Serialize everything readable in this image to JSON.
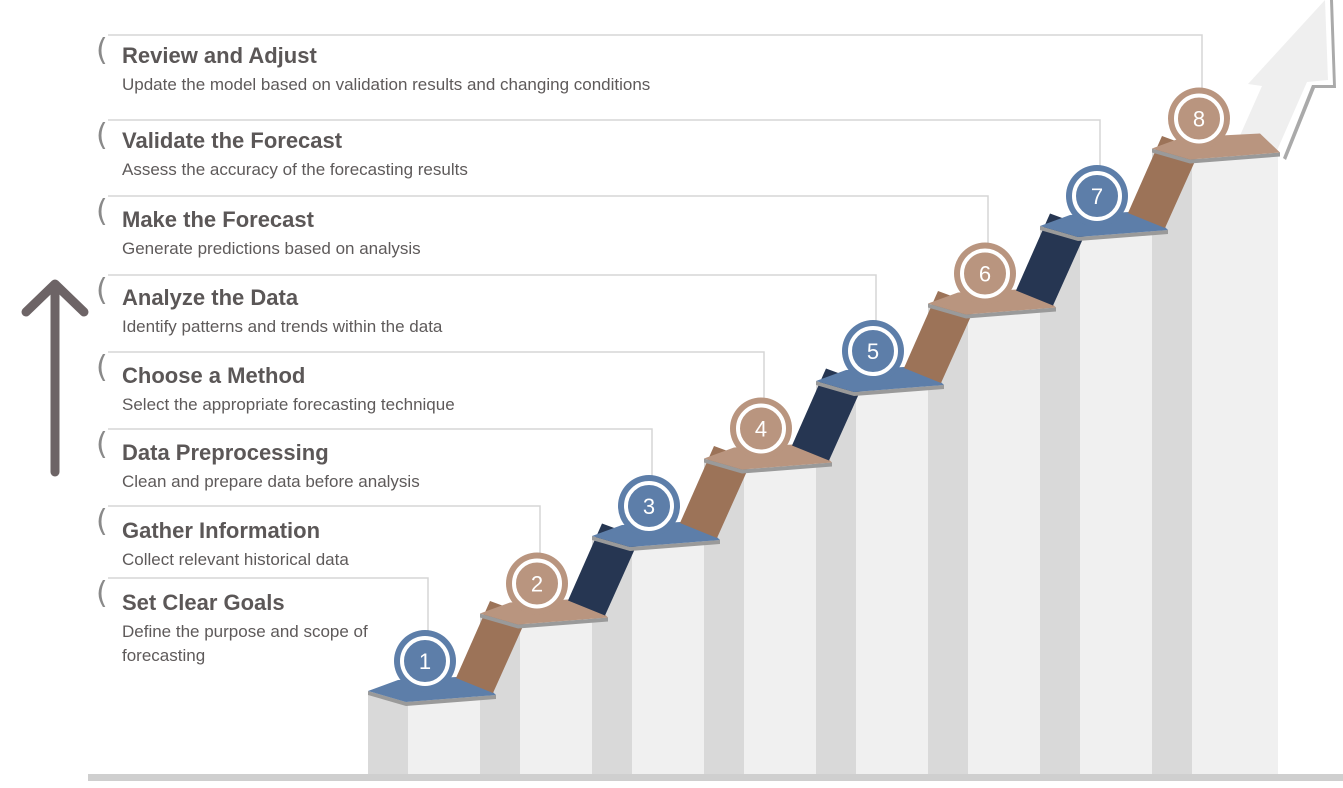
{
  "steps": [
    {
      "number": "1",
      "title": "Set Clear Goals",
      "description": "Define the purpose and scope of forecasting"
    },
    {
      "number": "2",
      "title": "Gather Information",
      "description": "Collect relevant historical data"
    },
    {
      "number": "3",
      "title": "Data Preprocessing",
      "description": "Clean and prepare data before analysis"
    },
    {
      "number": "4",
      "title": "Choose a Method",
      "description": "Select the appropriate forecasting technique"
    },
    {
      "number": "5",
      "title": "Analyze the Data",
      "description": "Identify patterns and trends within the data"
    },
    {
      "number": "6",
      "title": "Make the Forecast",
      "description": "Generate predictions based on analysis"
    },
    {
      "number": "7",
      "title": "Validate the Forecast",
      "description": "Assess the accuracy of the forecasting results"
    },
    {
      "number": "8",
      "title": "Review and Adjust",
      "description": "Update the model based on validation results and changing conditions"
    }
  ],
  "colors": {
    "blue": "#5d7ea9",
    "tan": "#b9957f",
    "brown": "#9c7358",
    "navy": "#263652",
    "pillar_front": "#f0f0f0",
    "pillar_side": "#d9d9d9",
    "arrow": "#6d6466",
    "line": "#d6d6d6"
  }
}
